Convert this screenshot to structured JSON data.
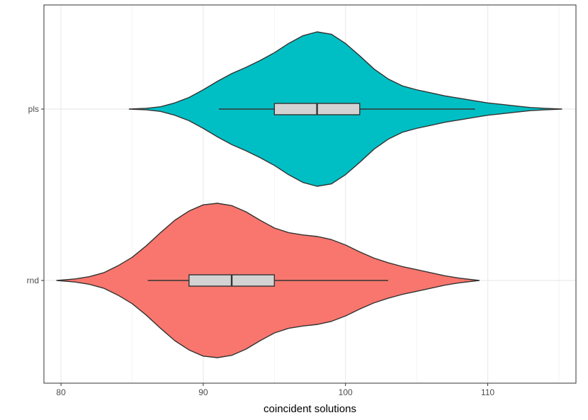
{
  "chart_data": {
    "type": "violin",
    "orientation": "horizontal",
    "title": "",
    "xlabel": "coincident solutions",
    "ylabel": "",
    "xlim": [
      78.8,
      116.2
    ],
    "x_ticks": [
      80,
      90,
      100,
      110
    ],
    "x_minor_ticks": [
      85,
      95,
      105,
      115
    ],
    "grid": true,
    "legend": "none",
    "categories": [
      "pls",
      "rnd"
    ],
    "series": [
      {
        "name": "pls",
        "color": "#00BFC4",
        "min": 84.8,
        "max": 115.2,
        "box": {
          "whisker_low": 91.1,
          "q1": 95.0,
          "median": 98.0,
          "q3": 101.0,
          "whisker_high": 109.1
        },
        "density": [
          [
            84.8,
            0.0
          ],
          [
            86.0,
            0.01
          ],
          [
            87.0,
            0.03
          ],
          [
            88.0,
            0.08
          ],
          [
            89.0,
            0.15
          ],
          [
            90.0,
            0.25
          ],
          [
            91.0,
            0.36
          ],
          [
            92.0,
            0.46
          ],
          [
            93.0,
            0.54
          ],
          [
            94.0,
            0.63
          ],
          [
            95.0,
            0.73
          ],
          [
            96.0,
            0.85
          ],
          [
            97.0,
            0.95
          ],
          [
            98.0,
            1.0
          ],
          [
            99.0,
            0.97
          ],
          [
            100.0,
            0.85
          ],
          [
            101.0,
            0.69
          ],
          [
            102.0,
            0.52
          ],
          [
            103.0,
            0.39
          ],
          [
            104.0,
            0.3
          ],
          [
            105.0,
            0.25
          ],
          [
            106.0,
            0.21
          ],
          [
            107.0,
            0.17
          ],
          [
            108.0,
            0.14
          ],
          [
            109.0,
            0.11
          ],
          [
            110.0,
            0.08
          ],
          [
            111.0,
            0.06
          ],
          [
            112.0,
            0.04
          ],
          [
            113.0,
            0.02
          ],
          [
            114.0,
            0.01
          ],
          [
            115.2,
            0.0
          ]
        ]
      },
      {
        "name": "rnd",
        "color": "#F8766D",
        "min": 79.7,
        "max": 109.4,
        "box": {
          "whisker_low": 86.1,
          "q1": 89.0,
          "median": 92.0,
          "q3": 95.0,
          "whisker_high": 103.0
        },
        "density": [
          [
            79.7,
            0.0
          ],
          [
            81.0,
            0.02
          ],
          [
            82.0,
            0.05
          ],
          [
            83.0,
            0.1
          ],
          [
            84.0,
            0.19
          ],
          [
            85.0,
            0.3
          ],
          [
            86.0,
            0.45
          ],
          [
            87.0,
            0.62
          ],
          [
            88.0,
            0.78
          ],
          [
            89.0,
            0.9
          ],
          [
            90.0,
            0.98
          ],
          [
            91.0,
            1.0
          ],
          [
            92.0,
            0.97
          ],
          [
            93.0,
            0.89
          ],
          [
            94.0,
            0.78
          ],
          [
            95.0,
            0.68
          ],
          [
            96.0,
            0.62
          ],
          [
            97.0,
            0.59
          ],
          [
            98.0,
            0.57
          ],
          [
            99.0,
            0.53
          ],
          [
            100.0,
            0.46
          ],
          [
            101.0,
            0.37
          ],
          [
            102.0,
            0.29
          ],
          [
            103.0,
            0.23
          ],
          [
            104.0,
            0.18
          ],
          [
            105.0,
            0.14
          ],
          [
            106.0,
            0.1
          ],
          [
            107.0,
            0.06
          ],
          [
            108.0,
            0.03
          ],
          [
            109.4,
            0.0
          ]
        ]
      }
    ],
    "box_fill": "#D3D3D3",
    "outline_color": "#333333"
  }
}
